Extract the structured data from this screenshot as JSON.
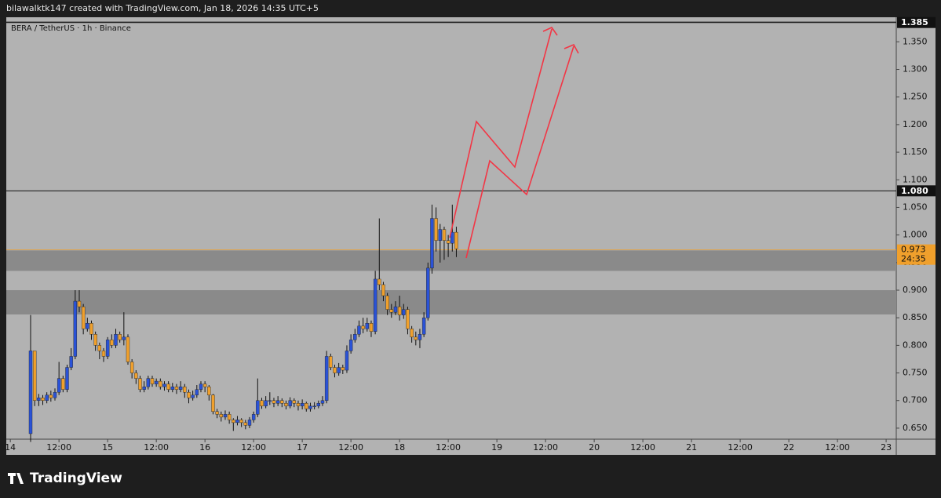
{
  "header": "bilawalktk147 created with TradingView.com, Jan 18, 2026 14:35 UTC+5",
  "logo": "TradingView",
  "chart_data": {
    "type": "candlestick",
    "title": "BERA / TetherUS · 1h · Binance",
    "x": [
      5,
      6,
      7,
      8,
      9,
      10,
      11,
      12,
      13,
      14,
      15,
      16,
      17,
      18,
      19,
      20,
      21,
      22,
      23,
      24,
      25,
      26,
      27,
      28,
      29,
      30,
      31,
      32,
      33,
      34,
      35,
      36,
      37,
      38,
      39,
      40,
      41,
      42,
      43,
      44,
      45,
      46,
      47,
      48,
      49,
      50,
      51,
      52,
      53,
      54,
      55,
      56,
      57,
      58,
      59,
      60,
      61,
      62,
      63,
      64,
      65,
      66,
      67,
      68,
      69,
      70,
      71,
      72,
      73,
      74,
      75,
      76,
      77,
      78,
      79,
      80,
      81,
      82,
      83,
      84,
      85,
      86,
      87,
      88,
      89,
      90,
      91,
      92,
      93,
      94,
      95,
      96,
      97,
      98,
      99,
      100,
      101,
      102,
      103,
      104,
      105,
      106,
      107,
      108,
      109,
      110
    ],
    "open": [
      0.64,
      0.79,
      0.7,
      0.705,
      0.7,
      0.71,
      0.705,
      0.715,
      0.74,
      0.72,
      0.76,
      0.78,
      0.88,
      0.87,
      0.83,
      0.84,
      0.82,
      0.8,
      0.79,
      0.78,
      0.81,
      0.8,
      0.82,
      0.81,
      0.815,
      0.77,
      0.75,
      0.74,
      0.72,
      0.725,
      0.74,
      0.73,
      0.735,
      0.725,
      0.73,
      0.72,
      0.725,
      0.72,
      0.725,
      0.715,
      0.705,
      0.71,
      0.72,
      0.73,
      0.725,
      0.71,
      0.68,
      0.675,
      0.67,
      0.675,
      0.665,
      0.66,
      0.665,
      0.66,
      0.655,
      0.665,
      0.675,
      0.7,
      0.69,
      0.7,
      0.7,
      0.695,
      0.7,
      0.695,
      0.69,
      0.7,
      0.695,
      0.69,
      0.695,
      0.685,
      0.69,
      0.69,
      0.695,
      0.7,
      0.78,
      0.76,
      0.75,
      0.76,
      0.755,
      0.79,
      0.81,
      0.82,
      0.835,
      0.83,
      0.84,
      0.825,
      0.92,
      0.91,
      0.89,
      0.865,
      0.86,
      0.87,
      0.855,
      0.865,
      0.83,
      0.815,
      0.81,
      0.82,
      0.85,
      0.94,
      1.03,
      0.99,
      1.01,
      0.99,
      0.985,
      1.005
    ],
    "high": [
      0.855,
      0.79,
      0.712,
      0.71,
      0.715,
      0.718,
      0.722,
      0.77,
      0.745,
      0.765,
      0.795,
      0.9,
      0.9,
      0.875,
      0.85,
      0.845,
      0.825,
      0.805,
      0.795,
      0.815,
      0.82,
      0.83,
      0.825,
      0.86,
      0.82,
      0.775,
      0.755,
      0.745,
      0.735,
      0.745,
      0.745,
      0.74,
      0.74,
      0.735,
      0.735,
      0.732,
      0.73,
      0.735,
      0.73,
      0.72,
      0.718,
      0.728,
      0.735,
      0.735,
      0.728,
      0.712,
      0.685,
      0.68,
      0.682,
      0.68,
      0.668,
      0.672,
      0.668,
      0.665,
      0.67,
      0.68,
      0.74,
      0.705,
      0.708,
      0.715,
      0.705,
      0.708,
      0.704,
      0.7,
      0.706,
      0.704,
      0.7,
      0.702,
      0.698,
      0.696,
      0.697,
      0.7,
      0.708,
      0.79,
      0.785,
      0.765,
      0.768,
      0.765,
      0.8,
      0.82,
      0.83,
      0.845,
      0.85,
      0.85,
      0.845,
      0.935,
      1.03,
      0.915,
      0.895,
      0.875,
      0.88,
      0.89,
      0.875,
      0.87,
      0.835,
      0.825,
      0.83,
      0.86,
      0.95,
      1.055,
      1.05,
      1.02,
      1.015,
      1.0,
      1.055,
      1.015
    ],
    "low": [
      0.625,
      0.69,
      0.69,
      0.692,
      0.695,
      0.698,
      0.7,
      0.71,
      0.715,
      0.715,
      0.755,
      0.775,
      0.86,
      0.82,
      0.825,
      0.81,
      0.79,
      0.775,
      0.77,
      0.775,
      0.795,
      0.795,
      0.805,
      0.8,
      0.765,
      0.74,
      0.73,
      0.715,
      0.715,
      0.72,
      0.725,
      0.725,
      0.72,
      0.718,
      0.715,
      0.715,
      0.712,
      0.715,
      0.705,
      0.695,
      0.7,
      0.705,
      0.715,
      0.715,
      0.7,
      0.675,
      0.668,
      0.662,
      0.665,
      0.658,
      0.645,
      0.655,
      0.652,
      0.648,
      0.65,
      0.66,
      0.67,
      0.685,
      0.686,
      0.692,
      0.688,
      0.69,
      0.688,
      0.684,
      0.686,
      0.688,
      0.682,
      0.684,
      0.68,
      0.68,
      0.684,
      0.686,
      0.69,
      0.695,
      0.755,
      0.742,
      0.745,
      0.748,
      0.75,
      0.785,
      0.805,
      0.815,
      0.822,
      0.825,
      0.815,
      0.82,
      0.9,
      0.88,
      0.855,
      0.85,
      0.855,
      0.845,
      0.848,
      0.82,
      0.805,
      0.8,
      0.795,
      0.815,
      0.845,
      0.93,
      0.97,
      0.95,
      0.955,
      0.96,
      0.97,
      0.96
    ],
    "close": [
      0.79,
      0.7,
      0.705,
      0.7,
      0.71,
      0.705,
      0.715,
      0.74,
      0.72,
      0.76,
      0.78,
      0.88,
      0.87,
      0.83,
      0.84,
      0.82,
      0.8,
      0.79,
      0.78,
      0.81,
      0.8,
      0.82,
      0.81,
      0.815,
      0.77,
      0.75,
      0.74,
      0.72,
      0.725,
      0.74,
      0.73,
      0.735,
      0.725,
      0.73,
      0.72,
      0.725,
      0.72,
      0.725,
      0.715,
      0.705,
      0.71,
      0.72,
      0.73,
      0.725,
      0.71,
      0.68,
      0.675,
      0.67,
      0.675,
      0.665,
      0.66,
      0.665,
      0.66,
      0.655,
      0.665,
      0.675,
      0.7,
      0.69,
      0.7,
      0.7,
      0.695,
      0.7,
      0.695,
      0.69,
      0.7,
      0.695,
      0.69,
      0.695,
      0.685,
      0.69,
      0.69,
      0.695,
      0.7,
      0.78,
      0.76,
      0.75,
      0.76,
      0.755,
      0.79,
      0.81,
      0.82,
      0.835,
      0.83,
      0.84,
      0.825,
      0.92,
      0.91,
      0.89,
      0.865,
      0.86,
      0.87,
      0.855,
      0.865,
      0.83,
      0.815,
      0.81,
      0.82,
      0.85,
      0.94,
      1.03,
      0.99,
      1.01,
      0.99,
      0.985,
      1.005,
      0.975
    ],
    "up_color": "#2a52d6",
    "down_color": "#f0a02c",
    "wick_color": "#111111",
    "xlim": [
      -1,
      218.5
    ],
    "xticks": [
      {
        "value": 0,
        "label": "14"
      },
      {
        "value": 12,
        "label": "12:00"
      },
      {
        "value": 24,
        "label": "15"
      },
      {
        "value": 36,
        "label": "12:00"
      },
      {
        "value": 48,
        "label": "16"
      },
      {
        "value": 60,
        "label": "12:00"
      },
      {
        "value": 72,
        "label": "17"
      },
      {
        "value": 84,
        "label": "12:00"
      },
      {
        "value": 96,
        "label": "18"
      },
      {
        "value": 108,
        "label": "12:00"
      },
      {
        "value": 120,
        "label": "19"
      },
      {
        "value": 132,
        "label": "12:00"
      },
      {
        "value": 144,
        "label": "20"
      },
      {
        "value": 156,
        "label": "12:00"
      },
      {
        "value": 168,
        "label": "21"
      },
      {
        "value": 180,
        "label": "12:00"
      },
      {
        "value": 192,
        "label": "22"
      },
      {
        "value": 204,
        "label": "12:00"
      },
      {
        "value": 216,
        "label": "23"
      }
    ],
    "ylim": [
      0.63,
      1.386
    ],
    "yticks": [
      {
        "value": 0.65,
        "label": "0.650"
      },
      {
        "value": 0.7,
        "label": "0.700"
      },
      {
        "value": 0.75,
        "label": "0.750"
      },
      {
        "value": 0.8,
        "label": "0.800"
      },
      {
        "value": 0.85,
        "label": "0.850"
      },
      {
        "value": 0.9,
        "label": "0.900"
      },
      {
        "value": 0.95,
        "label": "0.950"
      },
      {
        "value": 1.0,
        "label": "1.000"
      },
      {
        "value": 1.05,
        "label": "1.050"
      },
      {
        "value": 1.1,
        "label": "1.100"
      },
      {
        "value": 1.15,
        "label": "1.150"
      },
      {
        "value": 1.2,
        "label": "1.200"
      },
      {
        "value": 1.25,
        "label": "1.250"
      },
      {
        "value": 1.3,
        "label": "1.300"
      },
      {
        "value": 1.35,
        "label": "1.350"
      }
    ],
    "grid": false,
    "price_lines": [
      {
        "value": 1.385,
        "label": "1.385"
      },
      {
        "value": 1.08,
        "label": "1.080"
      }
    ],
    "last_price": {
      "value": 0.973,
      "label": "0.973",
      "countdown": "24:35",
      "color": "#f0a02c"
    },
    "zones": [
      {
        "low": 0.935,
        "high": 0.972
      },
      {
        "low": 0.856,
        "high": 0.9
      }
    ],
    "zone_color": "#8a8a8a"
  }
}
